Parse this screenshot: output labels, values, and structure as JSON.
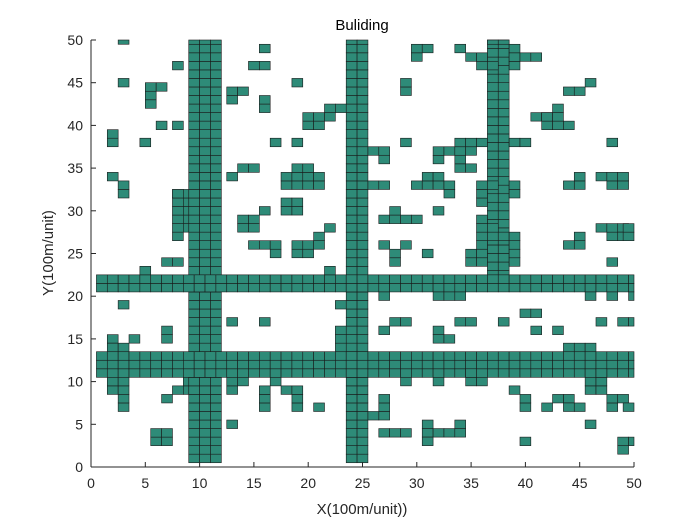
{
  "chart_data": {
    "type": "heatmap",
    "title": "Buliding",
    "xlabel": "X(100m/unit))",
    "ylabel": "Y(100m/unit)",
    "xlim": [
      0,
      50
    ],
    "ylim": [
      0,
      50
    ],
    "xticks": [
      0,
      5,
      10,
      15,
      20,
      25,
      30,
      35,
      40,
      45,
      50
    ],
    "yticks": [
      0,
      5,
      10,
      15,
      20,
      25,
      30,
      35,
      40,
      45,
      50
    ],
    "grid": false,
    "cell_size": 1,
    "colors": {
      "cell_fill": "#2e8b78",
      "cell_edge": "#1a1a1a",
      "axis": "#262626",
      "background": "#ffffff"
    },
    "roads": [
      {
        "orientation": "vertical",
        "x_range": [
          9,
          12
        ],
        "y_range": [
          0.5,
          50
        ]
      },
      {
        "orientation": "vertical",
        "x_range": [
          23.5,
          25.5
        ],
        "y_range": [
          0.5,
          50
        ]
      },
      {
        "orientation": "vertical",
        "x_range": [
          36.5,
          38.5
        ],
        "y_range": [
          22,
          50
        ]
      },
      {
        "orientation": "horizontal",
        "x_range": [
          0.5,
          50
        ],
        "y_range": [
          20.5,
          22.5
        ]
      },
      {
        "orientation": "horizontal",
        "x_range": [
          0.5,
          50
        ],
        "y_range": [
          10.5,
          13.5
        ]
      }
    ],
    "blocks": [
      [
        2.5,
        49.5,
        1,
        0.5
      ],
      [
        1.5,
        37.5,
        1,
        2
      ],
      [
        1.5,
        33.5,
        1,
        1
      ],
      [
        2.5,
        31.5,
        1,
        2
      ],
      [
        2.5,
        44.5,
        1,
        1
      ],
      [
        5,
        42,
        1,
        3
      ],
      [
        6,
        44,
        1,
        1
      ],
      [
        6,
        39.5,
        1,
        1
      ],
      [
        7.5,
        46.5,
        1,
        1
      ],
      [
        7.5,
        39.5,
        1,
        1
      ],
      [
        4.5,
        37.5,
        1,
        1
      ],
      [
        7.5,
        31.5,
        1,
        1
      ],
      [
        7.5,
        26.5,
        1,
        6
      ],
      [
        8.5,
        27.5,
        0.5,
        5
      ],
      [
        6.5,
        23.5,
        2,
        1
      ],
      [
        4.5,
        22.5,
        1,
        1
      ],
      [
        2.5,
        18.5,
        1,
        1
      ],
      [
        1.5,
        14.5,
        1,
        1
      ],
      [
        1.5,
        13.5,
        2,
        1
      ],
      [
        3.5,
        14.5,
        1,
        1
      ],
      [
        6.5,
        14.5,
        1,
        2
      ],
      [
        1.5,
        8.5,
        2,
        2
      ],
      [
        2.5,
        6.5,
        1,
        2
      ],
      [
        6.5,
        7.5,
        1,
        1
      ],
      [
        7.5,
        8.5,
        1,
        1
      ],
      [
        5.5,
        2.5,
        2,
        2
      ],
      [
        12.5,
        42.5,
        1,
        2
      ],
      [
        13.5,
        43.5,
        1,
        1
      ],
      [
        14.5,
        46.5,
        1,
        1
      ],
      [
        15.5,
        46.5,
        1,
        1
      ],
      [
        15.5,
        41.5,
        1,
        2
      ],
      [
        15.5,
        48.5,
        1,
        1
      ],
      [
        18.5,
        44.5,
        1,
        1
      ],
      [
        16.5,
        37.5,
        1,
        1
      ],
      [
        18.5,
        37.5,
        1,
        1
      ],
      [
        12.5,
        33.5,
        1,
        1
      ],
      [
        13.5,
        34.5,
        2,
        1
      ],
      [
        13.5,
        27.5,
        2,
        2
      ],
      [
        15.5,
        29.5,
        1,
        1
      ],
      [
        14.5,
        25.5,
        2,
        1
      ],
      [
        16.5,
        24.5,
        1,
        2
      ],
      [
        18.5,
        24.5,
        2,
        2
      ],
      [
        17.5,
        29.5,
        2,
        2
      ],
      [
        17.5,
        32.5,
        4,
        2
      ],
      [
        18.5,
        34.5,
        2,
        1
      ],
      [
        19.5,
        39.5,
        2,
        2
      ],
      [
        21.5,
        40.5,
        1,
        2
      ],
      [
        22.5,
        41.5,
        1,
        1
      ],
      [
        20.5,
        25.5,
        1,
        2
      ],
      [
        21.5,
        27.5,
        1,
        1
      ],
      [
        21.5,
        22.5,
        1,
        1
      ],
      [
        22.5,
        18.5,
        1,
        1
      ],
      [
        12.5,
        16.5,
        1,
        1
      ],
      [
        15.5,
        16.5,
        1,
        1
      ],
      [
        12.5,
        8.5,
        1,
        2
      ],
      [
        13.5,
        9.5,
        1,
        1
      ],
      [
        15.5,
        6.5,
        1,
        3
      ],
      [
        16.5,
        9.5,
        1,
        1
      ],
      [
        17.5,
        8.5,
        1,
        1
      ],
      [
        18.5,
        6.5,
        1,
        3
      ],
      [
        20.5,
        6.5,
        1,
        1
      ],
      [
        12.5,
        4.5,
        1,
        1
      ],
      [
        8.5,
        8.5,
        0.5,
        2
      ],
      [
        22.5,
        13.5,
        1,
        3
      ],
      [
        25.5,
        36.5,
        2,
        1
      ],
      [
        25.5,
        32.5,
        2,
        1
      ],
      [
        27.5,
        28.5,
        1,
        2
      ],
      [
        28.5,
        28.5,
        2,
        1
      ],
      [
        26.5,
        35.5,
        1,
        1
      ],
      [
        28.5,
        37.5,
        1,
        1
      ],
      [
        29.5,
        32.5,
        1,
        1
      ],
      [
        30.5,
        32.5,
        2,
        2
      ],
      [
        31.5,
        35.5,
        1,
        1
      ],
      [
        31.5,
        36.5,
        4,
        1
      ],
      [
        33.5,
        34.5,
        1,
        2
      ],
      [
        32.5,
        31.5,
        1,
        2
      ],
      [
        26.5,
        28.5,
        1,
        1
      ],
      [
        27.5,
        23.5,
        1,
        2
      ],
      [
        28.5,
        25.5,
        1,
        1
      ],
      [
        26.5,
        19.5,
        1,
        1
      ],
      [
        30.5,
        24.5,
        1,
        1
      ],
      [
        27.5,
        16.5,
        1,
        1
      ],
      [
        28.5,
        16.5,
        1,
        1
      ],
      [
        26.5,
        25.5,
        1,
        1
      ],
      [
        31.5,
        19.5,
        1,
        1
      ],
      [
        32.5,
        19.5,
        2,
        1
      ],
      [
        31.5,
        29.5,
        1,
        1
      ],
      [
        34.5,
        23.5,
        1,
        2
      ],
      [
        35.5,
        23.5,
        1,
        1
      ],
      [
        35.5,
        24.5,
        1,
        5
      ],
      [
        36.5,
        26.5,
        1,
        2
      ],
      [
        37.5,
        26.5,
        1,
        1
      ],
      [
        38.5,
        23.5,
        1,
        4
      ],
      [
        34.5,
        16.5,
        1,
        1
      ],
      [
        33.5,
        16.5,
        1,
        1
      ],
      [
        37.5,
        16.5,
        1,
        1
      ],
      [
        39.5,
        17.5,
        1,
        1
      ],
      [
        31.5,
        14.5,
        1,
        2
      ],
      [
        32.5,
        14.5,
        1,
        1
      ],
      [
        31.5,
        9.5,
        1,
        1
      ],
      [
        34.5,
        9.5,
        1,
        2
      ],
      [
        26.5,
        5.5,
        1,
        3
      ],
      [
        25.5,
        5.5,
        1,
        1
      ],
      [
        26.5,
        3.5,
        1,
        1
      ],
      [
        27.5,
        3.5,
        2,
        1
      ],
      [
        30.5,
        3.5,
        1,
        2
      ],
      [
        30.5,
        2.5,
        1,
        1
      ],
      [
        31.5,
        3.5,
        1,
        1
      ],
      [
        32.5,
        3.5,
        2,
        1
      ],
      [
        33.5,
        4.5,
        1,
        1
      ],
      [
        28.5,
        9.5,
        1,
        1
      ],
      [
        26.5,
        15.5,
        1,
        1
      ],
      [
        29.5,
        47.5,
        1,
        2
      ],
      [
        30.5,
        48.5,
        1,
        1
      ],
      [
        28.5,
        43.5,
        1,
        2
      ],
      [
        33.5,
        48.5,
        1,
        1
      ],
      [
        34.5,
        47.5,
        2,
        1
      ],
      [
        35.5,
        46.5,
        2,
        1
      ],
      [
        38.5,
        46.5,
        1,
        2
      ],
      [
        38.5,
        48.5,
        1,
        1
      ],
      [
        39.5,
        47.5,
        1,
        1
      ],
      [
        40.5,
        47.5,
        1,
        1
      ],
      [
        36.5,
        49.5,
        2,
        0.5
      ],
      [
        38.5,
        37.5,
        1,
        1
      ],
      [
        39.5,
        37.5,
        1,
        1
      ],
      [
        33.5,
        37.5,
        3,
        1
      ],
      [
        34.5,
        34.5,
        1,
        1
      ],
      [
        35.5,
        30.5,
        1,
        3
      ],
      [
        36.5,
        32.5,
        1,
        1
      ],
      [
        38.5,
        31.5,
        1,
        1
      ],
      [
        38.5,
        32.5,
        1,
        1
      ],
      [
        40.5,
        40.5,
        2,
        1
      ],
      [
        41.5,
        39.5,
        2,
        2
      ],
      [
        42.5,
        41.5,
        1,
        1
      ],
      [
        43.5,
        39.5,
        1,
        1
      ],
      [
        43.5,
        43.5,
        2,
        1
      ],
      [
        45.5,
        44.5,
        1,
        1
      ],
      [
        44.5,
        32.5,
        1,
        1
      ],
      [
        43.5,
        32.5,
        1,
        1
      ],
      [
        44.5,
        33.5,
        1,
        1
      ],
      [
        46.5,
        33.5,
        1,
        1
      ],
      [
        47.5,
        32.5,
        2,
        2
      ],
      [
        47.5,
        37.5,
        1,
        1
      ],
      [
        48.5,
        27.5,
        1,
        1
      ],
      [
        48.5,
        26.5,
        1,
        1
      ],
      [
        47.5,
        26.5,
        1,
        1
      ],
      [
        46.5,
        27.5,
        2,
        1
      ],
      [
        49,
        26.5,
        1,
        2
      ],
      [
        44.5,
        25.5,
        1,
        2
      ],
      [
        43.5,
        25.5,
        1,
        1
      ],
      [
        47.5,
        23.5,
        1,
        1
      ],
      [
        45.5,
        19.5,
        1,
        1
      ],
      [
        47.5,
        19.5,
        1,
        1
      ],
      [
        49.5,
        19.5,
        0.5,
        1
      ],
      [
        46.5,
        16.5,
        1,
        1
      ],
      [
        48.5,
        16.5,
        1,
        1
      ],
      [
        49.5,
        16.5,
        0.5,
        1
      ],
      [
        40.5,
        17.5,
        1,
        1
      ],
      [
        40.5,
        15.5,
        1,
        1
      ],
      [
        42.5,
        15.5,
        1,
        1
      ],
      [
        43.5,
        13.5,
        2,
        1
      ],
      [
        45.5,
        13.5,
        1,
        1
      ],
      [
        45.5,
        8.5,
        2,
        2
      ],
      [
        46.5,
        10.5,
        1,
        1
      ],
      [
        41.5,
        6.5,
        1,
        1
      ],
      [
        39.5,
        6.5,
        1,
        2
      ],
      [
        43.5,
        7.5,
        1,
        1
      ],
      [
        42.5,
        7.5,
        1,
        1
      ],
      [
        43.5,
        6.5,
        1,
        1
      ],
      [
        44.5,
        6.5,
        1,
        1
      ],
      [
        47.5,
        6.5,
        1,
        2
      ],
      [
        48.5,
        7.5,
        1,
        1
      ],
      [
        49,
        6.5,
        1,
        1
      ],
      [
        48.5,
        1.5,
        1,
        2
      ],
      [
        49.5,
        2.5,
        0.5,
        1
      ],
      [
        45.5,
        4.5,
        1,
        1
      ],
      [
        39.5,
        2.5,
        1,
        1
      ],
      [
        38.5,
        8.5,
        1,
        1
      ],
      [
        35.5,
        9.5,
        1,
        1
      ]
    ]
  }
}
